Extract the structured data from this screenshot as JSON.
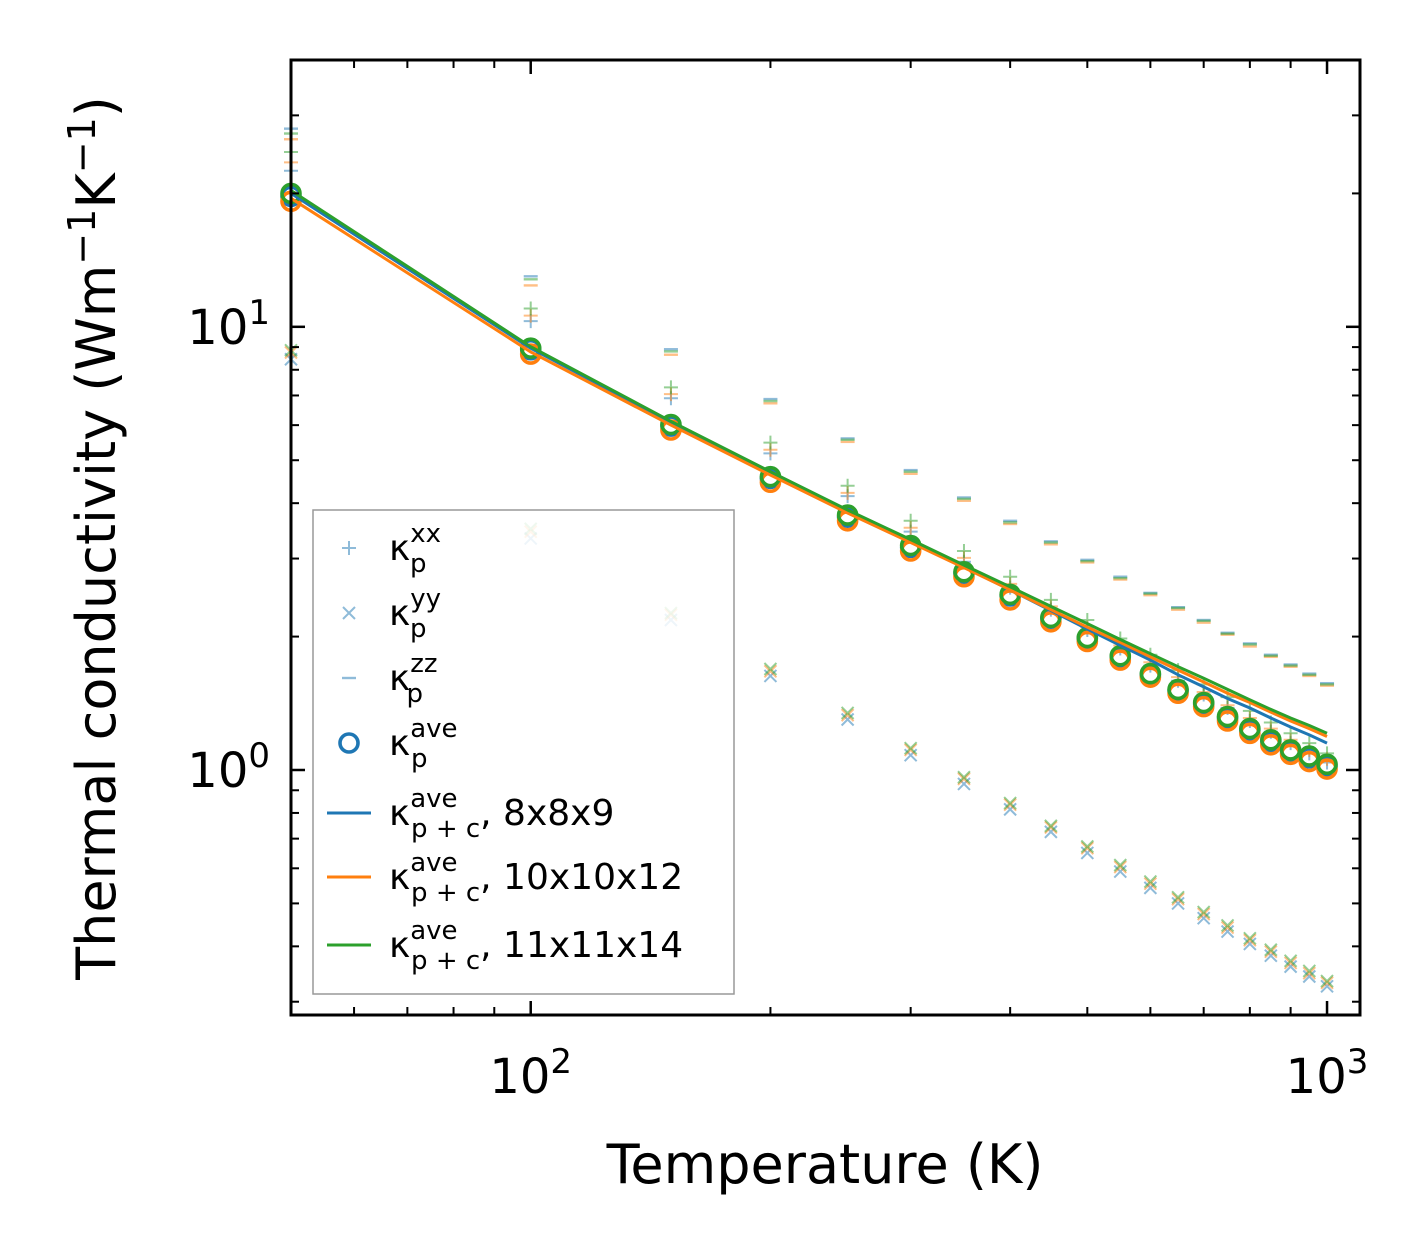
{
  "chart_data": {
    "type": "scatter",
    "xscale": "log",
    "yscale": "log",
    "xlim": [
      50,
      1100
    ],
    "ylim": [
      0.28,
      40
    ],
    "xlabel": "Temperature (K)",
    "ylabel": "Thermal conductivity (Wm",
    "ylabel_sup1": "−1",
    "ylabel_mid": "K",
    "ylabel_sup2": "−1",
    "ylabel_end": ")",
    "x_ticks": [
      {
        "base": "10",
        "exp": "2"
      },
      {
        "base": "10",
        "exp": "3"
      }
    ],
    "y_ticks": [
      {
        "base": "10",
        "exp": "0"
      },
      {
        "base": "10",
        "exp": "1"
      }
    ],
    "temperatures": [
      50,
      100,
      150,
      200,
      250,
      300,
      350,
      400,
      450,
      500,
      550,
      600,
      650,
      700,
      750,
      800,
      850,
      900,
      950,
      1000
    ],
    "colors": {
      "blue": "#1f77b4",
      "orange": "#ff7f0e",
      "green": "#2ca02c"
    },
    "meshes": [
      "8x8x9",
      "10x10x12",
      "11x11x14"
    ],
    "series": [
      {
        "name": "kappa_p_xx",
        "marker": "plus",
        "alpha": 0.5,
        "values": {
          "8x8x9": [
            22.5,
            10.3,
            6.9,
            5.18,
            4.15,
            3.45,
            2.95,
            2.58,
            2.3,
            2.07,
            1.88,
            1.72,
            1.59,
            1.48,
            1.38,
            1.29,
            1.22,
            1.15,
            1.09,
            1.04
          ],
          "10x10x12": [
            23.5,
            10.6,
            7.05,
            5.28,
            4.22,
            3.52,
            3.01,
            2.63,
            2.34,
            2.1,
            1.91,
            1.75,
            1.62,
            1.5,
            1.4,
            1.31,
            1.24,
            1.17,
            1.11,
            1.06
          ],
          "11x11x14": [
            24.8,
            11.0,
            7.3,
            5.48,
            4.38,
            3.65,
            3.12,
            2.73,
            2.42,
            2.18,
            1.98,
            1.82,
            1.68,
            1.56,
            1.46,
            1.36,
            1.28,
            1.21,
            1.15,
            1.09
          ]
        }
      },
      {
        "name": "kappa_p_yy",
        "marker": "x",
        "alpha": 0.5,
        "values": {
          "8x8x9": [
            8.45,
            3.33,
            2.18,
            1.63,
            1.3,
            1.08,
            0.93,
            0.815,
            0.725,
            0.65,
            0.59,
            0.542,
            0.5,
            0.463,
            0.432,
            0.405,
            0.381,
            0.36,
            0.342,
            0.325
          ],
          "10x10x12": [
            8.75,
            3.45,
            2.24,
            1.67,
            1.33,
            1.11,
            0.955,
            0.835,
            0.742,
            0.666,
            0.604,
            0.554,
            0.511,
            0.473,
            0.441,
            0.413,
            0.389,
            0.367,
            0.348,
            0.331
          ],
          "11x11x14": [
            8.85,
            3.5,
            2.26,
            1.69,
            1.345,
            1.12,
            0.963,
            0.842,
            0.748,
            0.672,
            0.61,
            0.56,
            0.516,
            0.478,
            0.446,
            0.417,
            0.393,
            0.371,
            0.352,
            0.334
          ]
        }
      },
      {
        "name": "kappa_p_zz",
        "marker": "dash",
        "alpha": 0.5,
        "values": {
          "8x8x9": [
            28.0,
            13.0,
            8.9,
            6.87,
            5.6,
            4.75,
            4.12,
            3.65,
            3.28,
            2.98,
            2.73,
            2.51,
            2.33,
            2.18,
            2.04,
            1.93,
            1.82,
            1.73,
            1.65,
            1.57
          ],
          "10x10x12": [
            26.5,
            12.4,
            8.65,
            6.72,
            5.5,
            4.66,
            4.05,
            3.59,
            3.23,
            2.94,
            2.69,
            2.48,
            2.3,
            2.15,
            2.02,
            1.9,
            1.8,
            1.71,
            1.63,
            1.55
          ],
          "11x11x14": [
            27.3,
            12.8,
            8.8,
            6.8,
            5.56,
            4.71,
            4.09,
            3.62,
            3.26,
            2.96,
            2.71,
            2.5,
            2.32,
            2.17,
            2.03,
            1.92,
            1.81,
            1.72,
            1.64,
            1.56
          ]
        }
      },
      {
        "name": "kappa_p_ave",
        "marker": "circle",
        "alpha": 1.0,
        "values": {
          "8x8x9": [
            19.7,
            8.88,
            5.97,
            4.55,
            3.72,
            3.18,
            2.78,
            2.47,
            2.2,
            1.98,
            1.8,
            1.64,
            1.51,
            1.41,
            1.31,
            1.23,
            1.16,
            1.1,
            1.065,
            1.02
          ],
          "10x10x12": [
            19.2,
            8.68,
            5.85,
            4.46,
            3.65,
            3.12,
            2.73,
            2.42,
            2.16,
            1.95,
            1.77,
            1.62,
            1.49,
            1.39,
            1.29,
            1.21,
            1.14,
            1.085,
            1.045,
            1.005
          ],
          "11x11x14": [
            20.0,
            8.95,
            6.02,
            4.59,
            3.76,
            3.21,
            2.8,
            2.49,
            2.21,
            1.99,
            1.81,
            1.65,
            1.52,
            1.42,
            1.32,
            1.24,
            1.17,
            1.11,
            1.075,
            1.03
          ]
        }
      },
      {
        "name": "kappa_pc_ave",
        "marker": "line",
        "alpha": 1.0,
        "values": {
          "8x8x9": [
            20.0,
            8.95,
            6.08,
            4.68,
            3.83,
            3.28,
            2.87,
            2.55,
            2.29,
            2.08,
            1.91,
            1.77,
            1.64,
            1.54,
            1.45,
            1.38,
            1.31,
            1.25,
            1.2,
            1.15
          ],
          "10x10x12": [
            19.5,
            8.78,
            6.0,
            4.63,
            3.8,
            3.26,
            2.86,
            2.55,
            2.3,
            2.1,
            1.94,
            1.8,
            1.68,
            1.58,
            1.49,
            1.42,
            1.35,
            1.29,
            1.24,
            1.19
          ],
          "11x11x14": [
            20.3,
            9.02,
            6.12,
            4.71,
            3.86,
            3.31,
            2.9,
            2.59,
            2.34,
            2.14,
            1.97,
            1.83,
            1.71,
            1.61,
            1.52,
            1.44,
            1.37,
            1.31,
            1.26,
            1.21
          ]
        }
      }
    ],
    "legend": {
      "position": "lower-left",
      "entries": [
        {
          "marker": "plus",
          "color": "#1f77b4",
          "alpha": 0.5,
          "sym": "κ",
          "sub": "p",
          "sup": "xx",
          "tail": ""
        },
        {
          "marker": "x",
          "color": "#1f77b4",
          "alpha": 0.5,
          "sym": "κ",
          "sub": "p",
          "sup": "yy",
          "tail": ""
        },
        {
          "marker": "dash",
          "color": "#1f77b4",
          "alpha": 0.5,
          "sym": "κ",
          "sub": "p",
          "sup": "zz",
          "tail": ""
        },
        {
          "marker": "circle",
          "color": "#1f77b4",
          "alpha": 1.0,
          "sym": "κ",
          "sub": "p",
          "sup": "ave",
          "tail": ""
        },
        {
          "marker": "line",
          "color": "#1f77b4",
          "alpha": 1.0,
          "sym": "κ",
          "sub": "p + c",
          "sup": "ave",
          "tail": ", 8x8x9"
        },
        {
          "marker": "line",
          "color": "#ff7f0e",
          "alpha": 1.0,
          "sym": "κ",
          "sub": "p + c",
          "sup": "ave",
          "tail": ", 10x10x12"
        },
        {
          "marker": "line",
          "color": "#2ca02c",
          "alpha": 1.0,
          "sym": "κ",
          "sub": "p + c",
          "sup": "ave",
          "tail": ", 11x11x14"
        }
      ]
    }
  }
}
